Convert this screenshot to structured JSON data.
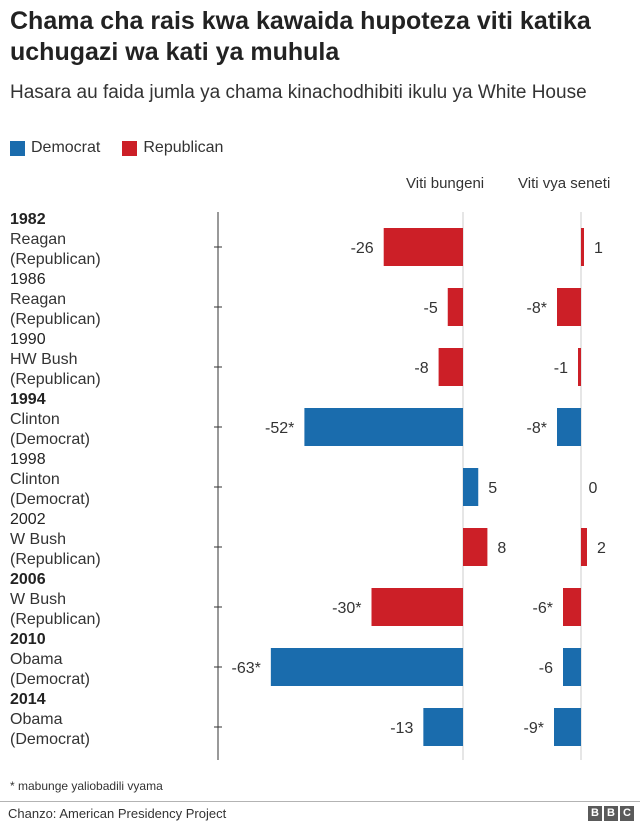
{
  "title": "Chama cha rais kwa kawaida hupoteza viti katika uchugazi wa kati ya muhula",
  "subtitle": "Hasara au faida jumla ya chama kinachodhibiti ikulu ya White House",
  "legend": [
    {
      "label": "Democrat",
      "color": "#1a6cad"
    },
    {
      "label": "Republican",
      "color": "#cc1f27"
    }
  ],
  "colors": {
    "Democrat": "#1a6cad",
    "Republican": "#cc1f27"
  },
  "chart_data": {
    "type": "bar",
    "orientation": "horizontal",
    "panels": [
      {
        "label": "Viti bungeni",
        "key": "house",
        "xlim": [
          -63,
          8
        ]
      },
      {
        "label": "Viti vya seneti",
        "key": "senate",
        "xlim": [
          -9,
          2
        ]
      }
    ],
    "rows": [
      {
        "year": "1982",
        "bold": true,
        "president": "Reagan",
        "party_label": "(Republican)",
        "party": "Republican",
        "house": -26,
        "house_label": "-26",
        "senate": 1,
        "senate_label": "1"
      },
      {
        "year": "1986",
        "bold": false,
        "president": "Reagan",
        "party_label": "(Republican)",
        "party": "Republican",
        "house": -5,
        "house_label": "-5",
        "senate": -8,
        "senate_label": "-8*"
      },
      {
        "year": "1990",
        "bold": false,
        "president": "HW Bush",
        "party_label": "(Republican)",
        "party": "Republican",
        "house": -8,
        "house_label": "-8",
        "senate": -1,
        "senate_label": "-1"
      },
      {
        "year": "1994",
        "bold": true,
        "president": "Clinton",
        "party_label": "(Democrat)",
        "party": "Democrat",
        "house": -52,
        "house_label": "-52*",
        "senate": -8,
        "senate_label": "-8*"
      },
      {
        "year": "1998",
        "bold": false,
        "president": "Clinton",
        "party_label": "(Democrat)",
        "party": "Democrat",
        "house": 5,
        "house_label": "5",
        "senate": 0,
        "senate_label": "0"
      },
      {
        "year": "2002",
        "bold": false,
        "president": "W Bush",
        "party_label": "(Republican)",
        "party": "Republican",
        "house": 8,
        "house_label": "8",
        "senate": 2,
        "senate_label": "2"
      },
      {
        "year": "2006",
        "bold": true,
        "president": "W Bush",
        "party_label": "(Republican)",
        "party": "Republican",
        "house": -30,
        "house_label": "-30*",
        "senate": -6,
        "senate_label": "-6*"
      },
      {
        "year": "2010",
        "bold": true,
        "president": "Obama",
        "party_label": "(Democrat)",
        "party": "Democrat",
        "house": -63,
        "house_label": "-63*",
        "senate": -6,
        "senate_label": "-6"
      },
      {
        "year": "2014",
        "bold": true,
        "president": "Obama",
        "party_label": "(Democrat)",
        "party": "Democrat",
        "house": -13,
        "house_label": "-13",
        "senate": -9,
        "senate_label": "-9*"
      }
    ]
  },
  "footnote": "* mabunge yaliobadili vyama",
  "source": "Chanzo: American Presidency Project",
  "logo": {
    "letters": [
      "B",
      "B",
      "C"
    ]
  }
}
